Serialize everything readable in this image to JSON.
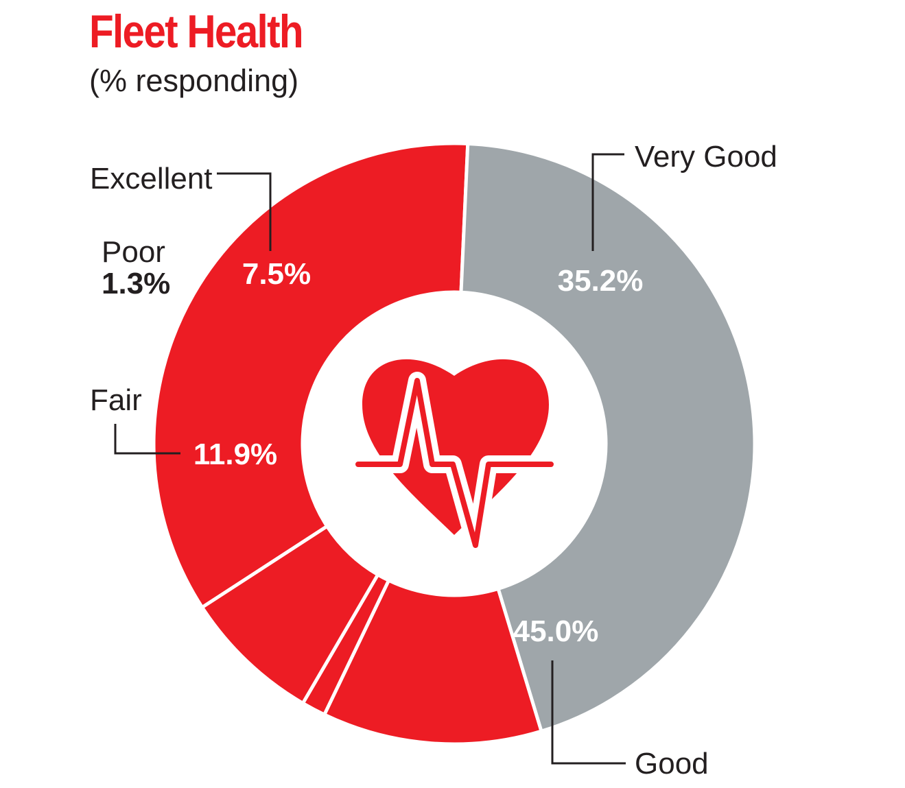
{
  "title": "Fleet Health",
  "subtitle": "(% responding)",
  "colors": {
    "accent": "#ed1c24",
    "gray": "#9fa6aa",
    "text": "#231f20",
    "background": "#ffffff"
  },
  "icon": "heart-pulse-icon",
  "chart_data": {
    "type": "pie",
    "title": "Fleet Health",
    "subtitle": "(% responding)",
    "donut": true,
    "unit": "%",
    "slices": [
      {
        "label": "Very Good",
        "value": 35.2,
        "display": "35.2%",
        "color": "#ed1c24"
      },
      {
        "label": "Good",
        "value": 45.0,
        "display": "45.0%",
        "color": "#9fa6aa"
      },
      {
        "label": "Fair",
        "value": 11.9,
        "display": "11.9%",
        "color": "#ed1c24"
      },
      {
        "label": "Poor",
        "value": 1.3,
        "display": "1.3%",
        "color": "#ed1c24"
      },
      {
        "label": "Excellent",
        "value": 7.5,
        "display": "7.5%",
        "color": "#ed1c24"
      }
    ]
  }
}
